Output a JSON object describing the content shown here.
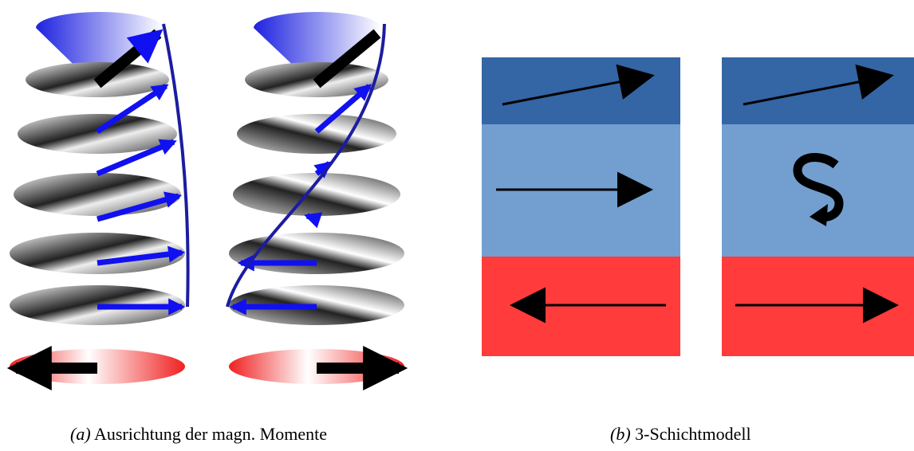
{
  "captions": [
    {
      "label": "(a)",
      "text": "Ausrichtung der magn. Momente"
    },
    {
      "label": "(b)",
      "text": "3-Schichtmodell"
    }
  ]
}
